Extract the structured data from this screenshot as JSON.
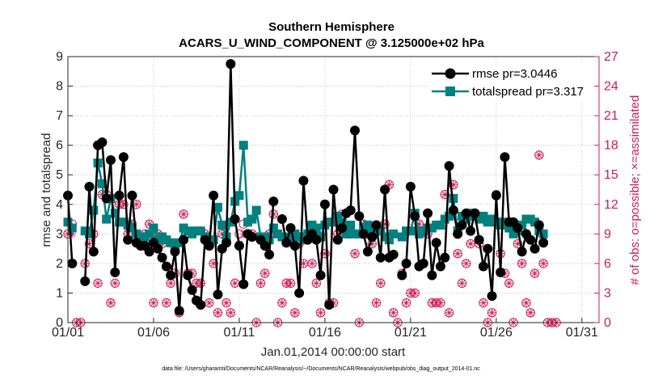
{
  "chart_data": {
    "type": "line",
    "title": "Southern Hemisphere",
    "subtitle": "ACARS_U_WIND_COMPONENT @ 3.125000e+02 hPa",
    "xlabel": "Jan.01,2014 00:00:00 start",
    "ylabel": "rmse and totalspread",
    "y2label": "# of obs: o=possible; ×=assimilated",
    "xlim": [
      1,
      32
    ],
    "ylim": [
      0,
      9
    ],
    "y2lim": [
      0,
      27
    ],
    "x_ticks": [
      1,
      6,
      11,
      16,
      21,
      26,
      31
    ],
    "x_tick_labels": [
      "01/01",
      "01/06",
      "01/11",
      "01/16",
      "01/21",
      "01/26",
      "01/31"
    ],
    "y_ticks": [
      0,
      1,
      2,
      3,
      4,
      5,
      6,
      7,
      8,
      9
    ],
    "y2_ticks": [
      0,
      3,
      6,
      9,
      12,
      15,
      18,
      21,
      24,
      27
    ],
    "grid": true,
    "legend_position": "top-right",
    "x_spacing_days": 0.25,
    "series": [
      {
        "name": "rmse pr=3.0446",
        "color": "#000000",
        "marker": "circle",
        "values": [
          4.3,
          2.0,
          null,
          null,
          1.4,
          4.6,
          2.4,
          6.0,
          6.1,
          4.2,
          5.5,
          1.7,
          4.3,
          5.6,
          2.8,
          4.3,
          2.7,
          2.6,
          2.6,
          2.4,
          2.7,
          2.5,
          2.2,
          1.9,
          1.6,
          2.4,
          0.4,
          2.8,
          1.6,
          1.1,
          0.75,
          0.6,
          2.8,
          2.6,
          4.3,
          0.95,
          2.5,
          2.7,
          8.75,
          3.5,
          2.6,
          1.3,
          3.0,
          2.9,
          null,
          2.8,
          2.6,
          2.3,
          4.1,
          null,
          3.5,
          2.7,
          3.2,
          2.6,
          1.0,
          4.8,
          2.8,
          3.0,
          2.8,
          1.6,
          4.0,
          0.6,
          4.5,
          2.8,
          3.2,
          3.7,
          3.8,
          6.5,
          3.6,
          3.0,
          2.4,
          2.9,
          3.3,
          2.2,
          4.5,
          2.2,
          2.3,
          null,
          1.6,
          2.0,
          4.6,
          3.6,
          1.9,
          2.0,
          3.7,
          1.6,
          2.7,
          1.9,
          2.2,
          5.3,
          3.8,
          3.0,
          3.3,
          3.7,
          3.1,
          3.7,
          2.8,
          1.9,
          2.5,
          0.9,
          4.3,
          1.7,
          5.6,
          3.4,
          3.4,
          3.2,
          2.4,
          3.0,
          2.8,
          2.5,
          3.3,
          2.7
        ]
      },
      {
        "name": "totalspread pr=3.317",
        "color": "#00807f",
        "marker": "square",
        "values": [
          3.4,
          3.2,
          null,
          null,
          3.1,
          3.0,
          3.8,
          5.4,
          4.7,
          3.5,
          4.2,
          3.7,
          3.4,
          3.4,
          3.3,
          3.2,
          3.0,
          2.9,
          2.9,
          3.0,
          3.2,
          2.8,
          2.9,
          2.8,
          2.7,
          2.6,
          2.7,
          3.2,
          3.1,
          3.0,
          3.1,
          3.1,
          2.9,
          2.8,
          2.8,
          3.9,
          3.3,
          2.9,
          3.4,
          4.1,
          4.3,
          6.0,
          3.4,
          3.5,
          3.8,
          2.9,
          2.9,
          2.8,
          3.2,
          3.0,
          2.9,
          2.9,
          2.8,
          3.0,
          2.9,
          2.8,
          3.0,
          3.3,
          3.2,
          2.9,
          3.3,
          3.4,
          3.4,
          3.6,
          3.4,
          3.0,
          3.3,
          3.0,
          3.0,
          3.2,
          3.3,
          3.0,
          3.1,
          3.1,
          2.9,
          2.8,
          3.0,
          null,
          2.9,
          3.1,
          3.1,
          3.7,
          3.0,
          3.1,
          3.2,
          3.2,
          3.3,
          3.3,
          3.5,
          3.6,
          4.2,
          3.1,
          3.6,
          3.5,
          3.7,
          3.6,
          3.5,
          3.6,
          3.4,
          3.5,
          3.4,
          3.3,
          3.4,
          3.2,
          3.0,
          3.1,
          3.3,
          3.5,
          3.5,
          3.4,
          3.1,
          3.0
        ]
      }
    ],
    "obs_possible": [
      9,
      10,
      0,
      0,
      6,
      8,
      9,
      4,
      13,
      13,
      2,
      4,
      12,
      12,
      9,
      10,
      12,
      8,
      9,
      10,
      2,
      9,
      8,
      2,
      4,
      5,
      1,
      11,
      5,
      5,
      4,
      4,
      9,
      2,
      6,
      1,
      9,
      2,
      1,
      4,
      9,
      10,
      9,
      9,
      0,
      4,
      5,
      9,
      11,
      0,
      2,
      4,
      4,
      1,
      8,
      6,
      9,
      6,
      4,
      1,
      7,
      2,
      2,
      9,
      11,
      9,
      9,
      7,
      0,
      10,
      9,
      8,
      2,
      4,
      10,
      14,
      1,
      0,
      5,
      2,
      3,
      3,
      10,
      6,
      9,
      2,
      2,
      2,
      13,
      1,
      14,
      7,
      4,
      6,
      8,
      11,
      8,
      2,
      0,
      1,
      13,
      7,
      5,
      4,
      0,
      8,
      6,
      2,
      1,
      5,
      17,
      6,
      0,
      0,
      0
    ],
    "obs_assimilated": [
      9,
      9,
      0,
      0,
      6,
      8,
      9,
      4,
      13,
      13,
      2,
      4,
      12,
      12,
      9,
      10,
      12,
      8,
      9,
      10,
      2,
      9,
      8,
      2,
      4,
      5,
      1,
      11,
      5,
      5,
      4,
      4,
      9,
      2,
      6,
      1,
      9,
      2,
      1,
      4,
      8,
      9,
      9,
      9,
      0,
      4,
      5,
      9,
      11,
      0,
      2,
      4,
      4,
      1,
      8,
      6,
      9,
      6,
      4,
      1,
      7,
      2,
      2,
      9,
      11,
      9,
      9,
      7,
      0,
      10,
      9,
      8,
      2,
      4,
      10,
      14,
      1,
      0,
      5,
      2,
      3,
      3,
      10,
      6,
      9,
      2,
      2,
      2,
      13,
      1,
      14,
      7,
      4,
      6,
      8,
      11,
      8,
      2,
      0,
      1,
      13,
      7,
      5,
      4,
      0,
      8,
      6,
      2,
      1,
      5,
      17,
      6,
      0,
      0,
      0
    ],
    "obs_color": "#cc1b58",
    "footnote": "data file: /Users/gharamti/Documents/NCAR/Reanalysis/~/Documents/NCAR/Reanalysis/webpub/obs_diag_output_2014-01.nc"
  }
}
